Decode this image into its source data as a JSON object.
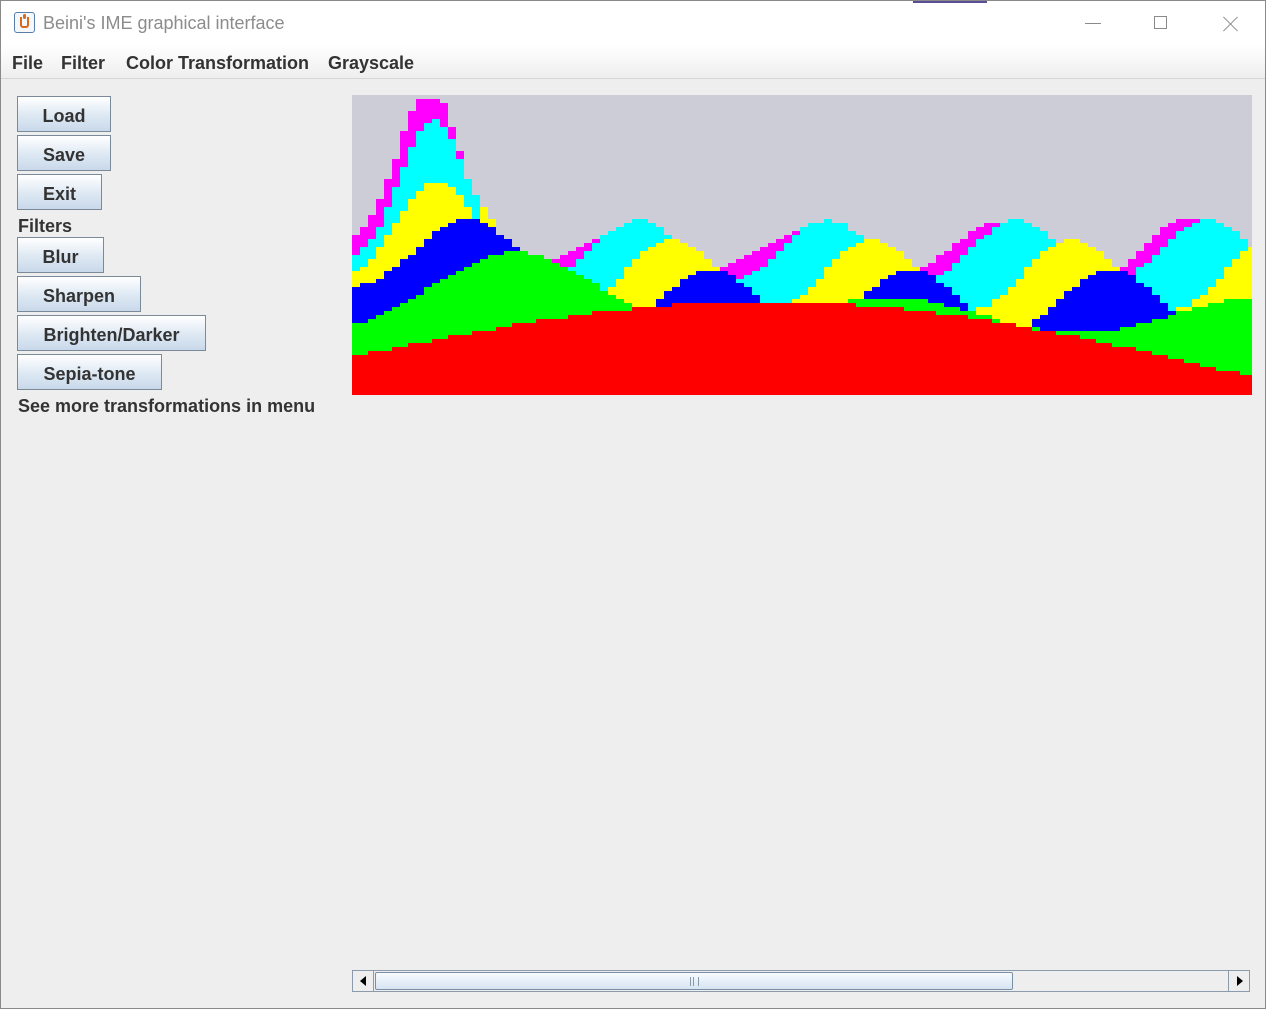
{
  "window": {
    "title": "Beini's IME graphical interface"
  },
  "menu": {
    "items": [
      {
        "id": "file",
        "label": "File"
      },
      {
        "id": "filter",
        "label": "Filter"
      },
      {
        "id": "color",
        "label": "Color Transformation"
      },
      {
        "id": "grayscale",
        "label": "Grayscale"
      }
    ]
  },
  "sidebar": {
    "load_label": "Load",
    "save_label": "Save",
    "exit_label": "Exit",
    "filters_heading": "Filters",
    "blur_label": "Blur",
    "sharpen_label": "Sharpen",
    "brighten_label": "Brighten/Darker",
    "sepia_label": "Sepia-tone",
    "more_text": "See more transformations in menu"
  },
  "image": {
    "background": "#cccdd7",
    "bands": [
      "#ff00ff",
      "#00ffff",
      "#ffff00",
      "#0000ff",
      "#00ff00",
      "#ff0000"
    ]
  },
  "scrollbar": {
    "thumb_position": 0.0,
    "thumb_size": 0.74
  }
}
